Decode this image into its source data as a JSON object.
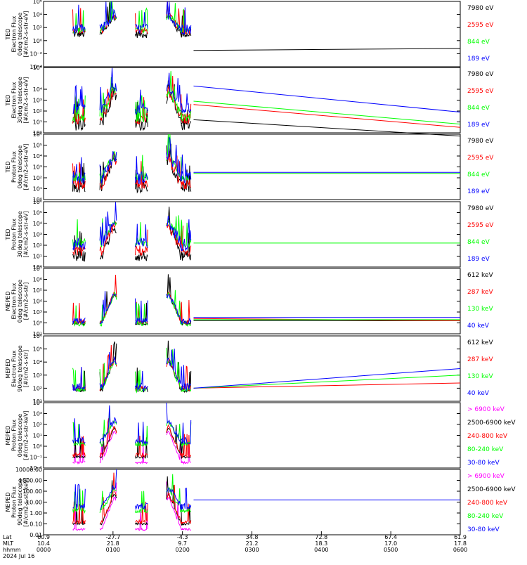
{
  "chart_data": [
    {
      "type": "line",
      "ylabel": [
        "TED",
        "Electron Flux",
        "0deg telescope",
        "[#/cm2-s-str-eV]"
      ],
      "scale": "log",
      "ytick_labels": [
        "10⁶",
        "10⁴",
        "10²",
        "10⁰",
        "10⁻²",
        "10⁻⁴"
      ],
      "ytick_exps": [
        6,
        4,
        2,
        0,
        -2,
        -4
      ],
      "ylim_exp": [
        -4,
        6
      ],
      "gap_start": 0.355,
      "series": [
        {
          "name": "7980 eV",
          "color": "#000000",
          "base": 1,
          "noise": 0.6,
          "tail": [
            -1.5,
            -1.2
          ]
        },
        {
          "name": "2595 eV",
          "color": "#ff0000",
          "base": 1.5,
          "noise": 0.5
        },
        {
          "name": "844 eV",
          "color": "#00ff00",
          "base": 1.6,
          "noise": 0.5
        },
        {
          "name": "189 eV",
          "color": "#0000ff",
          "base": 1.8,
          "noise": 0.8
        }
      ]
    },
    {
      "type": "line",
      "ylabel": [
        "TED",
        "Electron Flux",
        "30deg telescope",
        "[#/cm2-s-str-eV]"
      ],
      "scale": "log",
      "ytick_labels": [
        "10⁶",
        "10⁴",
        "10³",
        "10²",
        "10¹",
        "10⁰"
      ],
      "ytick_exps": [
        6,
        4,
        3,
        2,
        1,
        0
      ],
      "ylim_exp": [
        0,
        6
      ],
      "gap_start": 0.355,
      "series": [
        {
          "name": "7980 eV",
          "color": "#000000",
          "base": 0.8,
          "noise": 0.6,
          "tail": [
            1.2,
            -0.3
          ]
        },
        {
          "name": "2595 eV",
          "color": "#ff0000",
          "base": 1.3,
          "noise": 0.5,
          "tail": [
            2.6,
            0.5
          ]
        },
        {
          "name": "844 eV",
          "color": "#00ff00",
          "base": 1.5,
          "noise": 0.5,
          "tail": [
            2.9,
            0.8
          ]
        },
        {
          "name": "189 eV",
          "color": "#0000ff",
          "base": 2.2,
          "noise": 0.5,
          "tail": [
            4.3,
            1.9
          ]
        }
      ]
    },
    {
      "type": "line",
      "ylabel": [
        "TED",
        "Proton Flux",
        "0deg telescope",
        "[#/cm2-s-str-eV]"
      ],
      "scale": "log",
      "ytick_labels": [
        "10⁶",
        "10⁵",
        "10⁴",
        "10³",
        "10²",
        "10¹",
        "10⁰"
      ],
      "ytick_exps": [
        6,
        5,
        4,
        3,
        2,
        1,
        0
      ],
      "ylim_exp": [
        0,
        6
      ],
      "gap_start": 0.355,
      "series": [
        {
          "name": "7980 eV",
          "color": "#000000",
          "base": 1.1,
          "noise": 0.5
        },
        {
          "name": "2595 eV",
          "color": "#ff0000",
          "base": 1.4,
          "noise": 0.5
        },
        {
          "name": "844 eV",
          "color": "#00ff00",
          "base": 2.1,
          "noise": 0.4,
          "tail": [
            2.4,
            2.4
          ]
        },
        {
          "name": "189 eV",
          "color": "#0000ff",
          "base": 2.0,
          "noise": 0.6,
          "tail": [
            2.5,
            2.5
          ]
        }
      ]
    },
    {
      "type": "line",
      "ylabel": [
        "TED",
        "Proton Flux",
        "30deg telescope",
        "[#/cm2-s-str-eV]"
      ],
      "scale": "log",
      "ytick_labels": [
        "10⁶",
        "10⁵",
        "10⁴",
        "10³",
        "10²",
        "10¹",
        "10⁰"
      ],
      "ytick_exps": [
        6,
        5,
        4,
        3,
        2,
        1,
        0
      ],
      "ylim_exp": [
        0,
        6
      ],
      "gap_start": 0.355,
      "series": [
        {
          "name": "7980 eV",
          "color": "#000000",
          "base": 1.0,
          "noise": 0.5
        },
        {
          "name": "2595 eV",
          "color": "#ff0000",
          "base": 1.5,
          "noise": 0.5
        },
        {
          "name": "844 eV",
          "color": "#00ff00",
          "base": 2.2,
          "noise": 0.4,
          "tail": [
            2.2,
            2.2
          ]
        },
        {
          "name": "189 eV",
          "color": "#0000ff",
          "base": 2.1,
          "noise": 0.6
        }
      ]
    },
    {
      "type": "line",
      "ylabel": [
        "MEPED",
        "Electron Flux",
        "0deg telescope",
        "[#/cm2-s-str]"
      ],
      "scale": "log",
      "ytick_labels": [
        "10⁷",
        "10⁶",
        "10⁵",
        "10⁴",
        "10³",
        "10²",
        "10¹"
      ],
      "ytick_exps": [
        7,
        6,
        5,
        4,
        3,
        2,
        1
      ],
      "ylim_exp": [
        1,
        7
      ],
      "gap_start": 0.355,
      "series": [
        {
          "name": "612 keV",
          "color": "#000000",
          "base": 2.0,
          "noise": 0.2,
          "tail": [
            2.2,
            2.2
          ]
        },
        {
          "name": "287 keV",
          "color": "#ff0000",
          "base": 2.1,
          "noise": 0.2,
          "tail": [
            2.4,
            2.2
          ]
        },
        {
          "name": "130 keV",
          "color": "#00ff00",
          "base": 1.9,
          "noise": 0.2,
          "tail": [
            2.3,
            2.3
          ]
        },
        {
          "name": "40 keV",
          "color": "#0000ff",
          "base": 2.2,
          "noise": 0.3,
          "tail": [
            2.5,
            2.5
          ]
        }
      ]
    },
    {
      "type": "line",
      "ylabel": [
        "MEPED",
        "Electron Flux",
        "90deg telescope",
        "[#/cm2-s-str]"
      ],
      "scale": "log",
      "ytick_labels": [
        "10⁶",
        "10⁵",
        "10⁴",
        "10³",
        "10²",
        "10¹"
      ],
      "ytick_exps": [
        6,
        5,
        4,
        3,
        2,
        1
      ],
      "ylim_exp": [
        1,
        6
      ],
      "gap_start": 0.355,
      "series": [
        {
          "name": "612 keV",
          "color": "#000000",
          "base": 1.9,
          "noise": 0.2
        },
        {
          "name": "287 keV",
          "color": "#ff0000",
          "base": 2.0,
          "noise": 0.2,
          "tail": [
            2.0,
            2.4
          ]
        },
        {
          "name": "130 keV",
          "color": "#00ff00",
          "base": 1.9,
          "noise": 0.2,
          "tail": [
            2.0,
            3.0
          ]
        },
        {
          "name": "40 keV",
          "color": "#0000ff",
          "base": 2.1,
          "noise": 0.3,
          "tail": [
            2.0,
            3.5
          ]
        }
      ]
    },
    {
      "type": "line",
      "ylabel": [
        "MEPED",
        "Proton Flux",
        "0deg telescope",
        "[#/cm2-s-str-keV]"
      ],
      "scale": "log",
      "ytick_labels": [
        "10⁴",
        "10³",
        "10²",
        "10¹",
        "10⁰",
        "10⁻¹",
        "10⁻²"
      ],
      "ytick_exps": [
        4,
        3,
        2,
        1,
        0,
        -1,
        -2
      ],
      "ylim_exp": [
        -2,
        4
      ],
      "gap_start": 0.355,
      "series": [
        {
          "name": "> 6900 keV",
          "color": "#ff00ff",
          "base": -1.5,
          "noise": 0.1
        },
        {
          "name": "2500-6900 keV",
          "color": "#000000",
          "base": -1.0,
          "noise": 0.1
        },
        {
          "name": "240-800 keV",
          "color": "#ff0000",
          "base": -0.8,
          "noise": 0.2
        },
        {
          "name": "80-240 keV",
          "color": "#00ff00",
          "base": 0.2,
          "noise": 0.2
        },
        {
          "name": "30-80 keV",
          "color": "#0000ff",
          "base": 0.5,
          "noise": 0.3
        }
      ]
    },
    {
      "type": "line",
      "ylabel": [
        "MEPED",
        "Proton Flux",
        "90deg telescope",
        "[#/cm2-s-str-keV]"
      ],
      "scale": "log",
      "ytick_labels": [
        "10000.00",
        "1000.00",
        "100.00",
        "10.00",
        "1.00",
        "0.10",
        "0.01"
      ],
      "ytick_exps": [
        4,
        3,
        2,
        1,
        0,
        -1,
        -2
      ],
      "ylim_exp": [
        -2,
        4
      ],
      "gap_start": 0.355,
      "series": [
        {
          "name": "> 6900 keV",
          "color": "#ff00ff",
          "base": -1.5,
          "noise": 0.1
        },
        {
          "name": "2500-6900 keV",
          "color": "#000000",
          "base": -1.0,
          "noise": 0.1
        },
        {
          "name": "240-800 keV",
          "color": "#ff0000",
          "base": -0.8,
          "noise": 0.2
        },
        {
          "name": "80-240 keV",
          "color": "#00ff00",
          "base": 0.2,
          "noise": 0.2
        },
        {
          "name": "30-80 keV",
          "color": "#0000ff",
          "base": 0.6,
          "noise": 0.3,
          "tail": [
            1.2,
            1.2
          ]
        }
      ]
    }
  ],
  "x_axis": {
    "row_labels": [
      "Lat",
      "MLT",
      "hhmm",
      "2024 Jul 16"
    ],
    "ticks": [
      {
        "lat": "60.9",
        "mlt": "10.4",
        "hhmm": "0000"
      },
      {
        "lat": "-27.7",
        "mlt": "21.8",
        "hhmm": "0100"
      },
      {
        "lat": "-4.3",
        "mlt": "9.7",
        "hhmm": "0200"
      },
      {
        "lat": "34.8",
        "mlt": "21.2",
        "hhmm": "0300"
      },
      {
        "lat": "72.8",
        "mlt": "18.3",
        "hhmm": "0400"
      },
      {
        "lat": "67.4",
        "mlt": "17.0",
        "hhmm": "0500"
      },
      {
        "lat": "61.9",
        "mlt": "17.8",
        "hhmm": "0600"
      }
    ]
  },
  "passes": [
    0.085,
    0.155,
    0.235,
    0.315,
    0.345
  ],
  "peaks": [
    0.17,
    0.3
  ]
}
